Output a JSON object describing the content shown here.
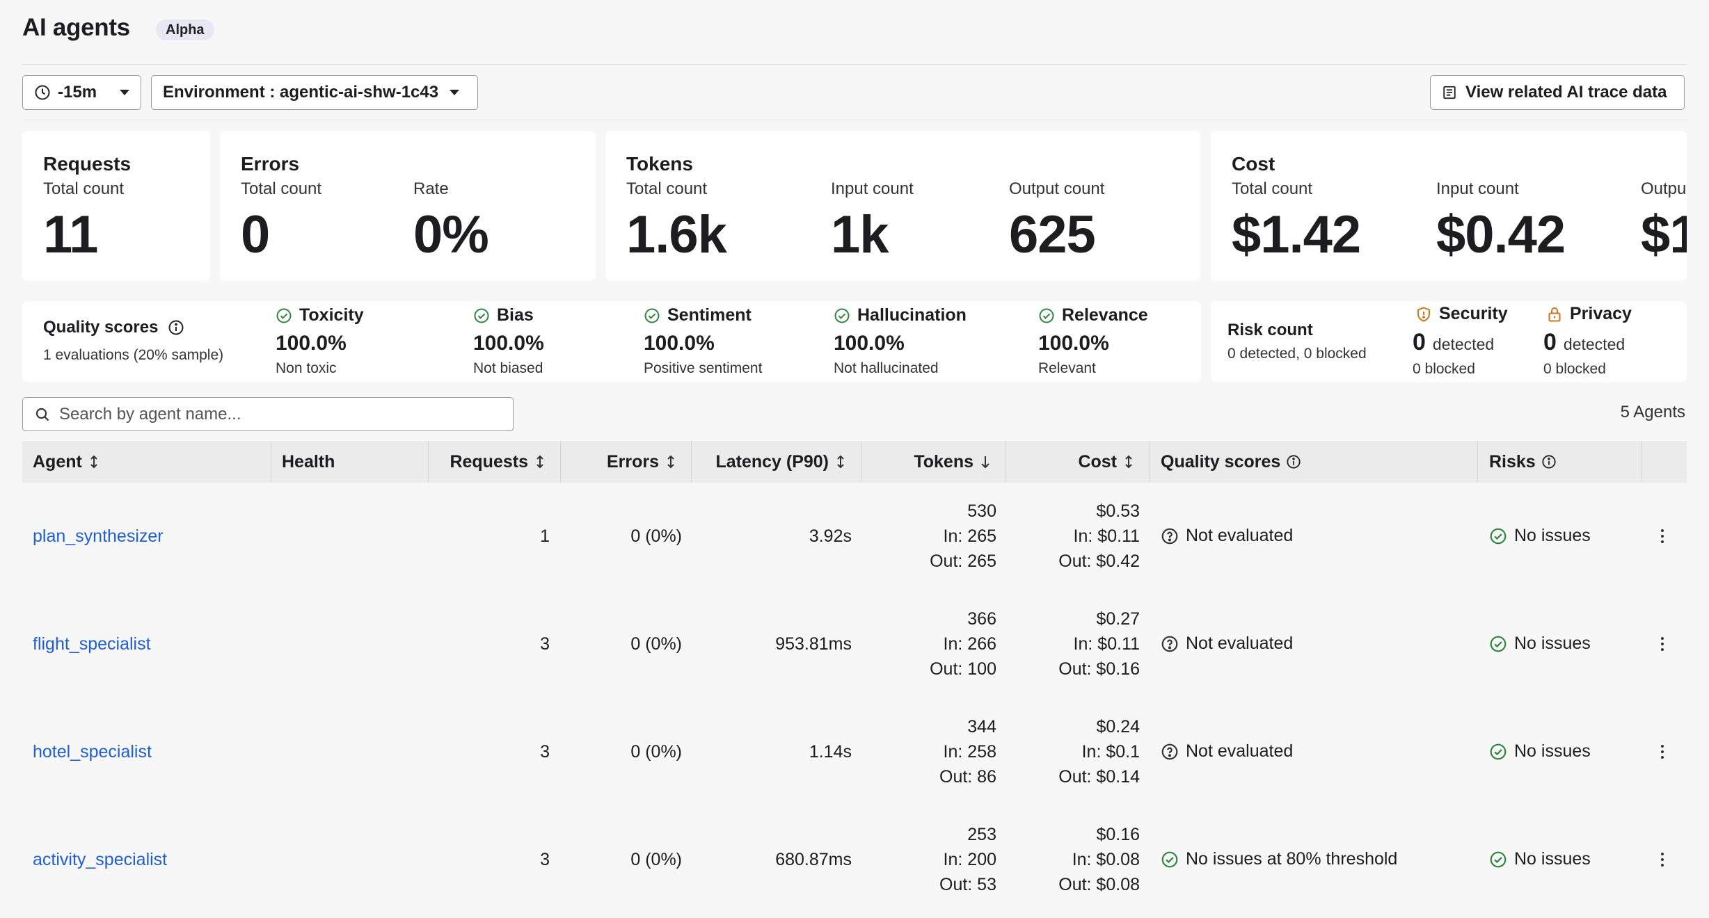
{
  "header": {
    "title": "AI agents",
    "badge": "Alpha"
  },
  "toolbar": {
    "time_range": "-15m",
    "environment": "Environment : agentic-ai-shw-1c43",
    "trace_button": "View related AI trace data"
  },
  "metrics": {
    "requests": {
      "title": "Requests",
      "total_label": "Total count",
      "total": "11"
    },
    "errors": {
      "title": "Errors",
      "total_label": "Total count",
      "total": "0",
      "rate_label": "Rate",
      "rate": "0%"
    },
    "tokens": {
      "title": "Tokens",
      "total_label": "Total count",
      "total": "1.6k",
      "input_label": "Input count",
      "input": "1k",
      "output_label": "Output count",
      "output": "625"
    },
    "cost": {
      "title": "Cost",
      "total_label": "Total count",
      "total": "$1.42",
      "input_label": "Input count",
      "input": "$0.42",
      "output_label": "Outpu",
      "output": "$1"
    }
  },
  "quality": {
    "title": "Quality scores",
    "subtitle": "1 evaluations (20% sample)",
    "scores": [
      {
        "name": "Toxicity",
        "value": "100.0%",
        "desc": "Non toxic"
      },
      {
        "name": "Bias",
        "value": "100.0%",
        "desc": "Not biased"
      },
      {
        "name": "Sentiment",
        "value": "100.0%",
        "desc": "Positive sentiment"
      },
      {
        "name": "Hallucination",
        "value": "100.0%",
        "desc": "Not hallucinated"
      },
      {
        "name": "Relevance",
        "value": "100.0%",
        "desc": "Relevant"
      }
    ]
  },
  "risk": {
    "title": "Risk count",
    "subtitle": "0 detected, 0 blocked",
    "security": {
      "name": "Security",
      "detected": "0",
      "detected_label": "detected",
      "blocked": "0 blocked"
    },
    "privacy": {
      "name": "Privacy",
      "detected": "0",
      "detected_label": "detected",
      "blocked": "0 blocked"
    }
  },
  "search": {
    "placeholder": "Search by agent name..."
  },
  "agents_count": "5 Agents",
  "table": {
    "columns": {
      "agent": "Agent",
      "health": "Health",
      "requests": "Requests",
      "errors": "Errors",
      "latency": "Latency (P90)",
      "tokens": "Tokens",
      "cost": "Cost",
      "quality": "Quality scores",
      "risks": "Risks"
    },
    "rows": [
      {
        "agent": "plan_synthesizer",
        "requests": "1",
        "errors": "0 (0%)",
        "latency": "3.92s",
        "tokens_total": "530",
        "tokens_in": "In: 265",
        "tokens_out": "Out: 265",
        "cost_total": "$0.53",
        "cost_in": "In: $0.11",
        "cost_out": "Out: $0.42",
        "quality": "Not evaluated",
        "risks": "No issues"
      },
      {
        "agent": "flight_specialist",
        "requests": "3",
        "errors": "0 (0%)",
        "latency": "953.81ms",
        "tokens_total": "366",
        "tokens_in": "In: 266",
        "tokens_out": "Out: 100",
        "cost_total": "$0.27",
        "cost_in": "In: $0.11",
        "cost_out": "Out: $0.16",
        "quality": "Not evaluated",
        "risks": "No issues"
      },
      {
        "agent": "hotel_specialist",
        "requests": "3",
        "errors": "0 (0%)",
        "latency": "1.14s",
        "tokens_total": "344",
        "tokens_in": "In: 258",
        "tokens_out": "Out: 86",
        "cost_total": "$0.24",
        "cost_in": "In: $0.1",
        "cost_out": "Out: $0.14",
        "quality": "Not evaluated",
        "risks": "No issues"
      },
      {
        "agent": "activity_specialist",
        "requests": "3",
        "errors": "0 (0%)",
        "latency": "680.87ms",
        "tokens_total": "253",
        "tokens_in": "In: 200",
        "tokens_out": "Out: 53",
        "cost_total": "$0.16",
        "cost_in": "In: $0.08",
        "cost_out": "Out: $0.08",
        "quality": "No issues at 80% threshold",
        "risks": "No issues"
      }
    ]
  },
  "colors": {
    "link": "#1f5fd1",
    "ok": "#2e8540",
    "warn": "#c9771c"
  }
}
